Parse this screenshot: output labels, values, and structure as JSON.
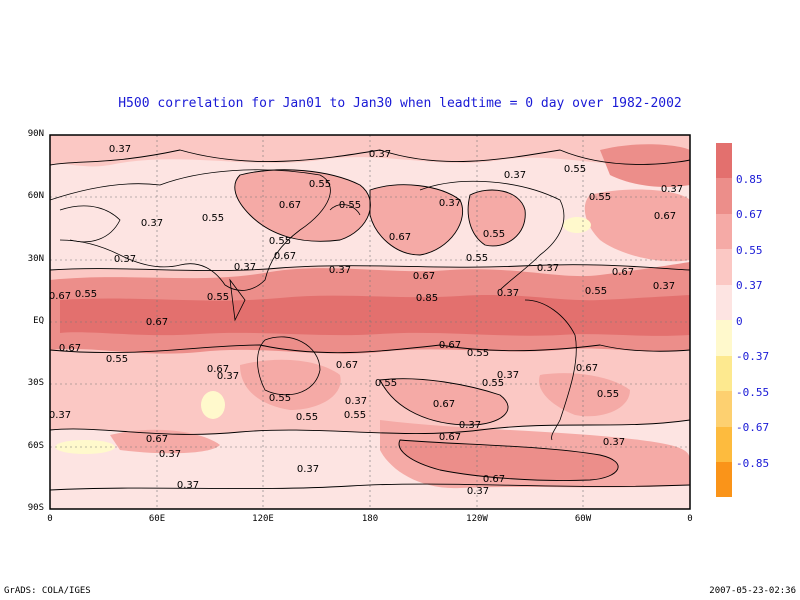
{
  "title": "H500 correlation for  Jan01 to Jan30  when leadtime =  0 day over 1982-2002",
  "y_axis_labels": [
    "90N",
    "60N",
    "30N",
    "EQ",
    "30S",
    "60S",
    "90S"
  ],
  "x_axis_labels": [
    "0",
    "60E",
    "120E",
    "180",
    "120W",
    "60W",
    "0"
  ],
  "colorbar": {
    "labels": [
      "0.85",
      "0.67",
      "0.55",
      "0.37",
      "0",
      "-0.37",
      "-0.55",
      "-0.67",
      "-0.85"
    ],
    "colors": [
      "#e3706e",
      "#ec8e8a",
      "#f5aaa6",
      "#fbc8c4",
      "#fde4e2",
      "#fff9cc",
      "#fde98f",
      "#fdd070",
      "#fdbb3e",
      "#fcaa22",
      "#fa9419"
    ]
  },
  "contour_labels": [
    "0.37",
    "0.55",
    "0.67",
    "0.85"
  ],
  "footer_left": "GrADS: COLA/IGES",
  "footer_right": "2007-05-23-02:36"
}
